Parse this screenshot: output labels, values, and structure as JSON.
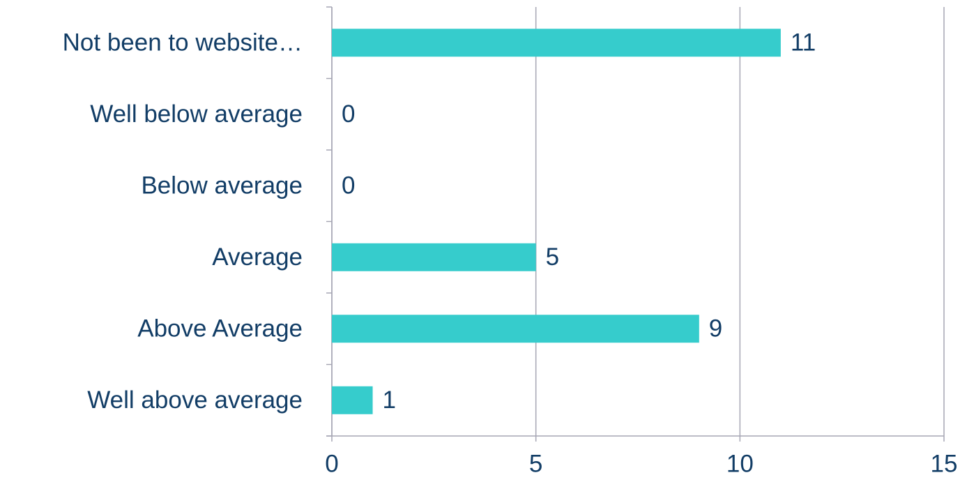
{
  "chart_data": {
    "type": "bar",
    "orientation": "horizontal",
    "categories": [
      "Not been to website…",
      "Well below average",
      "Below average",
      "Average",
      "Above Average",
      "Well above average"
    ],
    "values": [
      11,
      0,
      0,
      5,
      9,
      1
    ],
    "color": "#36cccc",
    "xlim": [
      0,
      15
    ],
    "xticks": [
      0,
      5,
      10,
      15
    ],
    "grid": true
  }
}
